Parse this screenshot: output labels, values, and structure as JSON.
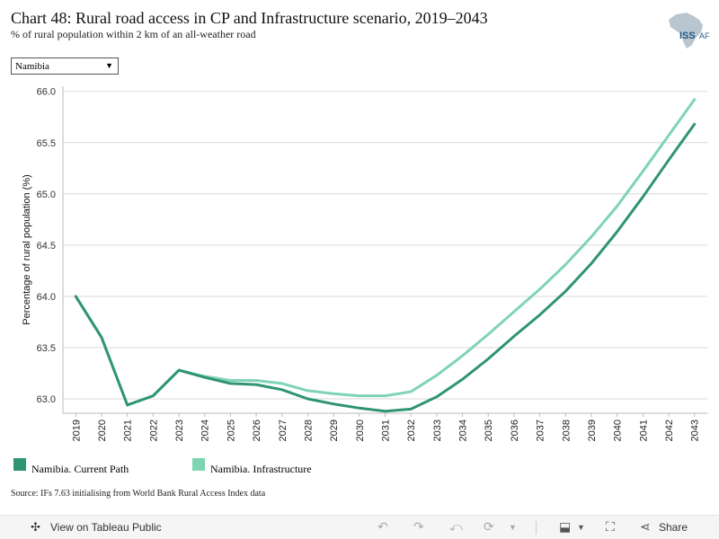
{
  "header": {
    "title": "Chart 48: Rural road access in CP and Infrastructure scenario, 2019–2043",
    "subtitle": "% of rural population within 2 km of an all-weather road",
    "logo_text": "ISS",
    "logo_suffix": "AFI"
  },
  "filter": {
    "selected": "Namibia",
    "caret_icon": "triangle-down"
  },
  "legend": [
    {
      "label": "Namibia. Current Path",
      "color": "#2f9471"
    },
    {
      "label": "Namibia. Infrastructure",
      "color": "#7fd4b4"
    }
  ],
  "source": "Source: IFs 7.63 initialising from World Bank Rural Access Index data",
  "footer": {
    "view_label": "View on Tableau Public",
    "share_label": "Share",
    "icons": [
      "tableau-icon",
      "undo-icon",
      "redo-icon",
      "revert-icon",
      "refresh-icon",
      "download-icon",
      "fullscreen-icon",
      "share-icon"
    ]
  },
  "chart_data": {
    "type": "line",
    "ylabel": "Percentage of rural population (%)",
    "xlabel": "",
    "ylim": [
      62.86,
      66.05
    ],
    "yticks": [
      "63.0",
      "63.5",
      "64.0",
      "64.5",
      "65.0",
      "65.5",
      "66.0"
    ],
    "grid": true,
    "x": [
      "2019",
      "2020",
      "2021",
      "2022",
      "2023",
      "2024",
      "2025",
      "2026",
      "2027",
      "2028",
      "2029",
      "2030",
      "2031",
      "2032",
      "2033",
      "2034",
      "2035",
      "2036",
      "2037",
      "2038",
      "2039",
      "2040",
      "2041",
      "2042",
      "2043"
    ],
    "series": [
      {
        "name": "Namibia. Current Path",
        "color": "#2f9471",
        "values": [
          64.0,
          63.6,
          62.94,
          63.03,
          63.28,
          63.21,
          63.15,
          63.14,
          63.09,
          63.0,
          62.95,
          62.91,
          62.88,
          62.9,
          63.02,
          63.19,
          63.39,
          63.61,
          63.82,
          64.05,
          64.32,
          64.63,
          64.97,
          65.33,
          65.68
        ]
      },
      {
        "name": "Namibia. Infrastructure",
        "color": "#7fd4b4",
        "values": [
          64.0,
          63.6,
          62.94,
          63.03,
          63.28,
          63.22,
          63.18,
          63.18,
          63.15,
          63.08,
          63.05,
          63.03,
          63.03,
          63.07,
          63.23,
          63.42,
          63.63,
          63.85,
          64.07,
          64.31,
          64.58,
          64.88,
          65.22,
          65.57,
          65.92
        ]
      }
    ]
  }
}
